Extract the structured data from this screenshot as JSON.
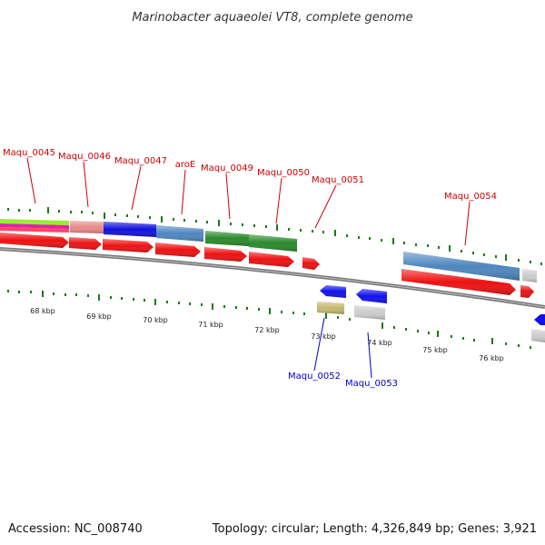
{
  "title": "Marinobacter aquaeolei VT8, complete genome",
  "footer": {
    "accession": "Accession: NC_008740",
    "summary": "Topology: circular; Length: 4,326,849 bp; Genes: 3,921"
  },
  "colors": {
    "plus_label": "#cc0000",
    "minus_label": "#0000cc",
    "cds": "#ee1111",
    "backbone": "#808080",
    "tick": "#1a7a1a"
  },
  "gene_labels_top": [
    "Maqu_0045",
    "Maqu_0046",
    "Maqu_0047",
    "aroE",
    "Maqu_0049",
    "Maqu_0050",
    "Maqu_0051",
    "Maqu_0054"
  ],
  "gene_labels_bottom": [
    "Maqu_0052",
    "Maqu_0053"
  ],
  "kbp_ticks": [
    "68 kbp",
    "69 kbp",
    "70 kbp",
    "71 kbp",
    "72 kbp",
    "73 kbp",
    "74 kbp",
    "75 kbp",
    "76 kbp"
  ]
}
